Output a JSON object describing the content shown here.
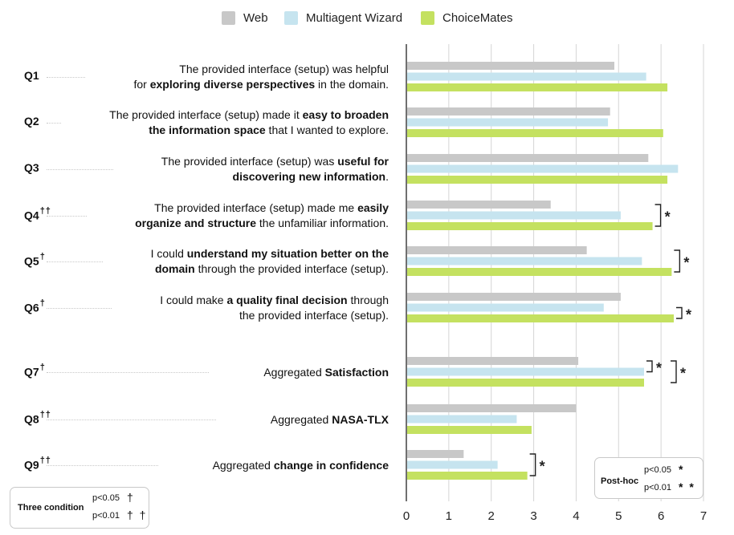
{
  "chart_data": {
    "type": "bar",
    "orientation": "horizontal",
    "legend": [
      {
        "name": "Web",
        "color": "#c8c8c8"
      },
      {
        "name": "Multiagent Wizard",
        "color": "#c6e4ef"
      },
      {
        "name": "ChoiceMates",
        "color": "#c4e160"
      }
    ],
    "categories": [
      "Q1",
      "Q2",
      "Q3",
      "Q4",
      "Q5",
      "Q6",
      "Q7",
      "Q8",
      "Q9"
    ],
    "category_marks": [
      "",
      "",
      "",
      "††",
      "†",
      "†",
      "†",
      "††",
      "††"
    ],
    "questions": [
      {
        "id": "Q1",
        "mark": "",
        "parts": [
          {
            "t": "The provided interface (setup) was helpful",
            "b": false
          },
          {
            "t": "\n",
            "b": false
          },
          {
            "t": "for ",
            "b": false
          },
          {
            "t": "exploring diverse perspectives",
            "b": true
          },
          {
            "t": " in the domain.",
            "b": false
          }
        ]
      },
      {
        "id": "Q2",
        "mark": "",
        "parts": [
          {
            "t": "The provided interface (setup) made it ",
            "b": false
          },
          {
            "t": "easy to broaden",
            "b": true
          },
          {
            "t": "\n",
            "b": false
          },
          {
            "t": "the information space",
            "b": true
          },
          {
            "t": " that I wanted to explore.",
            "b": false
          }
        ]
      },
      {
        "id": "Q3",
        "mark": "",
        "parts": [
          {
            "t": "The provided interface (setup) was ",
            "b": false
          },
          {
            "t": "useful for",
            "b": true
          },
          {
            "t": "\n",
            "b": false
          },
          {
            "t": "discovering new information",
            "b": true
          },
          {
            "t": ".",
            "b": false
          }
        ]
      },
      {
        "id": "Q4",
        "mark": "††",
        "parts": [
          {
            "t": "The provided interface (setup) made me ",
            "b": false
          },
          {
            "t": "easily",
            "b": true
          },
          {
            "t": "\n",
            "b": false
          },
          {
            "t": "organize and structure",
            "b": true
          },
          {
            "t": " the unfamiliar information.",
            "b": false
          }
        ]
      },
      {
        "id": "Q5",
        "mark": "†",
        "parts": [
          {
            "t": "I could ",
            "b": false
          },
          {
            "t": "understand my situation better on the",
            "b": true
          },
          {
            "t": "\n",
            "b": false
          },
          {
            "t": "domain",
            "b": true
          },
          {
            "t": " through the provided interface (setup).",
            "b": false
          }
        ]
      },
      {
        "id": "Q6",
        "mark": "†",
        "parts": [
          {
            "t": "I could make ",
            "b": false
          },
          {
            "t": "a quality final decision",
            "b": true
          },
          {
            "t": " through",
            "b": false
          },
          {
            "t": "\n",
            "b": false
          },
          {
            "t": "the provided interface (setup).",
            "b": false
          }
        ]
      },
      {
        "id": "Q7",
        "mark": "†",
        "parts": [
          {
            "t": "Aggregated ",
            "b": false
          },
          {
            "t": "Satisfaction",
            "b": true
          }
        ]
      },
      {
        "id": "Q8",
        "mark": "††",
        "parts": [
          {
            "t": "Aggregated ",
            "b": false
          },
          {
            "t": "NASA-TLX",
            "b": true
          }
        ]
      },
      {
        "id": "Q9",
        "mark": "††",
        "parts": [
          {
            "t": "Aggregated ",
            "b": false
          },
          {
            "t": "change in confidence",
            "b": true
          }
        ]
      }
    ],
    "series": [
      {
        "name": "Web",
        "values": [
          4.9,
          4.8,
          5.7,
          3.4,
          4.25,
          5.05,
          4.05,
          4.0,
          1.35
        ]
      },
      {
        "name": "Multiagent Wizard",
        "values": [
          5.65,
          4.75,
          6.4,
          5.05,
          5.55,
          4.65,
          5.6,
          2.6,
          2.15
        ]
      },
      {
        "name": "ChoiceMates",
        "values": [
          6.15,
          6.05,
          6.15,
          5.8,
          6.25,
          6.3,
          5.6,
          2.95,
          2.85
        ]
      }
    ],
    "xlim": [
      0,
      7
    ],
    "xticks": [
      "0",
      "1",
      "2",
      "3",
      "4",
      "5",
      "6",
      "7"
    ],
    "posthoc_brackets": [
      {
        "question": "Q4",
        "from": "Web",
        "to": "ChoiceMates",
        "label": "*"
      },
      {
        "question": "Q5",
        "from": "Web",
        "to": "ChoiceMates",
        "label": "*"
      },
      {
        "question": "Q6",
        "from": "Multiagent Wizard",
        "to": "ChoiceMates",
        "label": "*"
      },
      {
        "question": "Q7",
        "from": "Web",
        "to": "Multiagent Wizard",
        "label": "*"
      },
      {
        "question": "Q7",
        "from": "Web",
        "to": "ChoiceMates",
        "label": "*"
      },
      {
        "question": "Q9",
        "from": "Web",
        "to": "ChoiceMates",
        "label": "*"
      }
    ]
  },
  "posthoc_legend": {
    "title": "Post-hoc",
    "rows": [
      {
        "label": "p<0.05",
        "symbol": "*"
      },
      {
        "label": "p<0.01",
        "symbol": "* *"
      }
    ]
  },
  "three_condition_legend": {
    "title": "Three condition",
    "rows": [
      {
        "label": "p<0.05",
        "symbol": "†"
      },
      {
        "label": "p<0.01",
        "symbol": "† †"
      }
    ]
  }
}
